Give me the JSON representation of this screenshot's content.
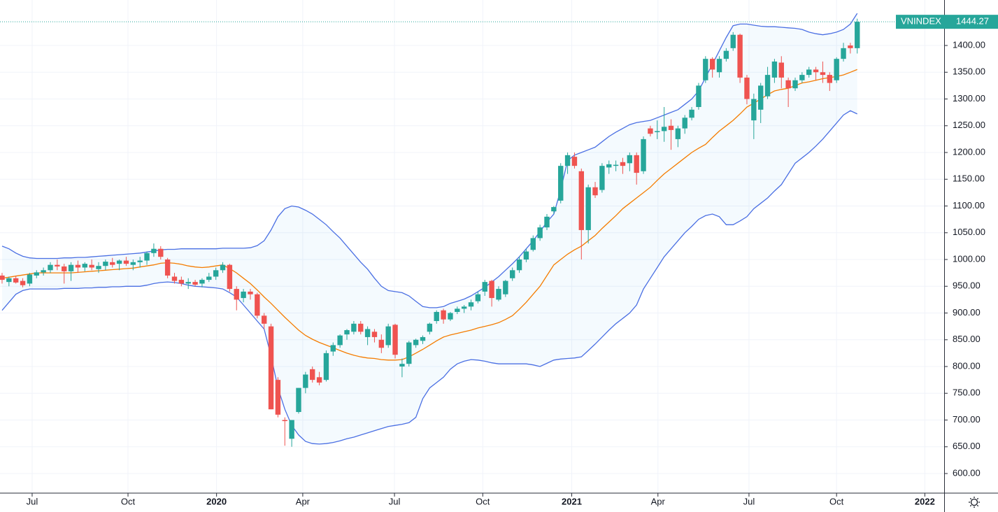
{
  "chart_data": {
    "type": "candlestick",
    "name": "VNINDEX",
    "up_color": "#26a69a",
    "down_color": "#ef5350",
    "grid": true,
    "open": [
      970,
      958,
      965,
      960,
      955,
      970,
      976,
      980,
      990,
      987,
      978,
      990,
      985,
      990,
      982,
      988,
      995,
      992,
      998,
      990,
      995,
      998,
      1012,
      1020,
      1000,
      968,
      962,
      955,
      958,
      955,
      962,
      968,
      980,
      990,
      945,
      928,
      940,
      935,
      895,
      875,
      775,
      700,
      665,
      715,
      760,
      795,
      780,
      775,
      828,
      840,
      860,
      865,
      880,
      855,
      865,
      850,
      840,
      878,
      800,
      805,
      840,
      848,
      865,
      885,
      905,
      888,
      902,
      908,
      912,
      922,
      940,
      960,
      925,
      935,
      965,
      980,
      1000,
      1018,
      1040,
      1060,
      1090,
      1110,
      1175,
      1192,
      1165,
      1055,
      1135,
      1130,
      1172,
      1175,
      1182,
      1180,
      1195,
      1165,
      1245,
      1238,
      1240,
      1250,
      1225,
      1245,
      1265,
      1285,
      1335,
      1375,
      1350,
      1375,
      1395,
      1420,
      1340,
      1260,
      1280,
      1305,
      1340,
      1368,
      1335,
      1320,
      1335,
      1345,
      1355,
      1350,
      1345,
      1335,
      1375,
      1400,
      1395
    ],
    "high": [
      975,
      968,
      970,
      965,
      975,
      980,
      985,
      995,
      1000,
      992,
      995,
      998,
      995,
      1000,
      995,
      1000,
      1003,
      1000,
      1005,
      1000,
      1005,
      1015,
      1030,
      1025,
      1003,
      975,
      968,
      965,
      962,
      965,
      975,
      985,
      995,
      992,
      950,
      945,
      945,
      938,
      900,
      880,
      780,
      705,
      700,
      760,
      790,
      800,
      790,
      830,
      845,
      860,
      870,
      885,
      885,
      875,
      870,
      860,
      880,
      880,
      815,
      848,
      852,
      858,
      882,
      905,
      908,
      902,
      912,
      915,
      925,
      940,
      962,
      962,
      950,
      962,
      985,
      1005,
      1020,
      1045,
      1065,
      1085,
      1100,
      1180,
      1200,
      1200,
      1170,
      1140,
      1145,
      1180,
      1185,
      1185,
      1190,
      1200,
      1200,
      1230,
      1250,
      1260,
      1285,
      1262,
      1250,
      1270,
      1285,
      1330,
      1380,
      1378,
      1380,
      1395,
      1425,
      1422,
      1345,
      1310,
      1330,
      1360,
      1375,
      1380,
      1340,
      1340,
      1350,
      1360,
      1360,
      1370,
      1350,
      1378,
      1405,
      1405,
      1450
    ],
    "low": [
      955,
      950,
      955,
      948,
      950,
      965,
      970,
      975,
      980,
      955,
      960,
      975,
      978,
      980,
      975,
      980,
      985,
      980,
      988,
      980,
      985,
      990,
      1005,
      1000,
      965,
      955,
      950,
      945,
      950,
      948,
      958,
      962,
      975,
      940,
      905,
      920,
      925,
      890,
      870,
      720,
      705,
      652,
      650,
      712,
      750,
      770,
      765,
      772,
      820,
      835,
      850,
      860,
      860,
      840,
      845,
      825,
      835,
      815,
      780,
      800,
      835,
      842,
      860,
      880,
      880,
      885,
      898,
      900,
      905,
      918,
      932,
      912,
      922,
      930,
      960,
      975,
      995,
      1015,
      1035,
      1055,
      1085,
      1105,
      1160,
      1170,
      1000,
      1030,
      1115,
      1125,
      1160,
      1165,
      1160,
      1165,
      1140,
      1160,
      1230,
      1225,
      1220,
      1205,
      1210,
      1235,
      1260,
      1280,
      1330,
      1340,
      1340,
      1370,
      1390,
      1330,
      1290,
      1225,
      1255,
      1300,
      1330,
      1320,
      1285,
      1315,
      1330,
      1340,
      1335,
      1330,
      1315,
      1330,
      1370,
      1385,
      1385
    ],
    "close": [
      962,
      965,
      957,
      952,
      972,
      976,
      980,
      990,
      987,
      978,
      990,
      985,
      992,
      985,
      988,
      996,
      990,
      998,
      992,
      995,
      998,
      1012,
      1020,
      1005,
      970,
      960,
      955,
      958,
      953,
      962,
      968,
      980,
      990,
      945,
      925,
      940,
      935,
      895,
      880,
      720,
      710,
      698,
      700,
      760,
      785,
      775,
      770,
      825,
      840,
      858,
      868,
      880,
      865,
      870,
      855,
      835,
      875,
      822,
      805,
      845,
      850,
      855,
      880,
      902,
      888,
      900,
      908,
      912,
      920,
      935,
      958,
      928,
      945,
      960,
      980,
      1000,
      1015,
      1040,
      1060,
      1080,
      1098,
      1175,
      1195,
      1175,
      1055,
      1135,
      1120,
      1175,
      1178,
      1177,
      1175,
      1195,
      1162,
      1225,
      1235,
      1240,
      1248,
      1242,
      1245,
      1265,
      1280,
      1325,
      1375,
      1355,
      1375,
      1390,
      1420,
      1340,
      1300,
      1300,
      1325,
      1345,
      1370,
      1340,
      1320,
      1335,
      1345,
      1355,
      1350,
      1345,
      1330,
      1375,
      1395,
      1395,
      1444.27
    ],
    "series": [
      {
        "color": "#4a6fe3",
        "values": [
          1025,
          1020,
          1012,
          1006,
          1003,
          1002,
          1002,
          1002,
          1002,
          1003,
          1003,
          1004,
          1004,
          1005,
          1006,
          1007,
          1008,
          1009,
          1010,
          1011,
          1012,
          1014,
          1016,
          1018,
          1019,
          1019,
          1020,
          1020,
          1020,
          1020,
          1020,
          1020,
          1021,
          1021,
          1021,
          1021,
          1022,
          1026,
          1035,
          1055,
          1080,
          1095,
          1100,
          1098,
          1092,
          1085,
          1075,
          1065,
          1052,
          1040,
          1025,
          1010,
          995,
          982,
          965,
          950,
          942,
          940,
          938,
          932,
          922,
          912,
          910,
          910,
          912,
          918,
          922,
          926,
          932,
          940,
          948,
          958,
          968,
          980,
          992,
          1005,
          1020,
          1035,
          1052,
          1070,
          1085,
          1130,
          1185,
          1195,
          1200,
          1205,
          1210,
          1220,
          1230,
          1238,
          1245,
          1252,
          1256,
          1258,
          1260,
          1265,
          1270,
          1275,
          1280,
          1290,
          1300,
          1315,
          1340,
          1365,
          1390,
          1415,
          1437,
          1440,
          1440,
          1438,
          1436,
          1435,
          1435,
          1434,
          1433,
          1432,
          1430,
          1425,
          1422,
          1420,
          1422,
          1425,
          1430,
          1440,
          1460
        ]
      },
      {
        "color": "#f57c00",
        "values": [
          965,
          967,
          969,
          971,
          973,
          975,
          975,
          975,
          975,
          975,
          975,
          976,
          977,
          978,
          979,
          980,
          981,
          982,
          983,
          984,
          986,
          988,
          990,
          993,
          994,
          993,
          991,
          988,
          986,
          985,
          986,
          988,
          990,
          983,
          975,
          965,
          955,
          943,
          930,
          918,
          905,
          892,
          880,
          868,
          858,
          851,
          845,
          840,
          835,
          830,
          825,
          821,
          818,
          816,
          815,
          813,
          812,
          812,
          813,
          818,
          825,
          832,
          840,
          848,
          855,
          859,
          862,
          865,
          868,
          872,
          875,
          878,
          882,
          888,
          895,
          907,
          920,
          935,
          950,
          970,
          990,
          1000,
          1010,
          1018,
          1025,
          1035,
          1045,
          1058,
          1070,
          1082,
          1095,
          1105,
          1115,
          1125,
          1135,
          1148,
          1160,
          1170,
          1180,
          1190,
          1200,
          1208,
          1215,
          1228,
          1240,
          1250,
          1260,
          1272,
          1285,
          1292,
          1300,
          1308,
          1315,
          1318,
          1320,
          1325,
          1330,
          1332,
          1335,
          1338,
          1340,
          1342,
          1345,
          1350,
          1355
        ]
      },
      {
        "color": "#4a6fe3",
        "values": [
          905,
          920,
          935,
          942,
          945,
          945,
          945,
          945,
          945,
          946,
          946,
          946,
          947,
          947,
          948,
          948,
          949,
          949,
          950,
          950,
          950,
          952,
          955,
          957,
          958,
          957,
          955,
          952,
          950,
          949,
          948,
          947,
          945,
          938,
          930,
          915,
          900,
          885,
          870,
          820,
          760,
          720,
          690,
          672,
          660,
          656,
          655,
          656,
          658,
          661,
          665,
          668,
          672,
          676,
          680,
          684,
          688,
          690,
          692,
          695,
          705,
          740,
          760,
          770,
          780,
          795,
          805,
          810,
          813,
          812,
          810,
          807,
          805,
          805,
          805,
          805,
          805,
          803,
          800,
          806,
          812,
          814,
          815,
          816,
          818,
          830,
          842,
          855,
          868,
          880,
          890,
          900,
          915,
          945,
          965,
          985,
          1005,
          1020,
          1035,
          1050,
          1062,
          1075,
          1082,
          1085,
          1080,
          1065,
          1065,
          1072,
          1080,
          1095,
          1105,
          1115,
          1128,
          1140,
          1160,
          1180,
          1190,
          1200,
          1212,
          1225,
          1240,
          1255,
          1270,
          1278,
          1272
        ]
      }
    ],
    "band_fill": "#2196f3",
    "ylim": [
      563.4,
      1485
    ],
    "yticks": [
      {
        "value": 600,
        "label": "600.00"
      },
      {
        "value": 650,
        "label": "650.00"
      },
      {
        "value": 700,
        "label": "700.00"
      },
      {
        "value": 750,
        "label": "750.00"
      },
      {
        "value": 800,
        "label": "800.00"
      },
      {
        "value": 850,
        "label": "850.00"
      },
      {
        "value": 900,
        "label": "900.00"
      },
      {
        "value": 950,
        "label": "950.00"
      },
      {
        "value": 1000,
        "label": "1000.00"
      },
      {
        "value": 1050,
        "label": "1050.00"
      },
      {
        "value": 1100,
        "label": "1100.00"
      },
      {
        "value": 1150,
        "label": "1150.00"
      },
      {
        "value": 1200,
        "label": "1200.00"
      },
      {
        "value": 1250,
        "label": "1250.00"
      },
      {
        "value": 1300,
        "label": "1300.00"
      },
      {
        "value": 1350,
        "label": "1350.00"
      },
      {
        "value": 1400,
        "label": "1400.00"
      }
    ],
    "xlim": [
      -0.3,
      136.6
    ],
    "xticks": [
      {
        "value": 4.36,
        "label": "Jul"
      },
      {
        "value": 18.26,
        "label": "Oct"
      },
      {
        "value": 31.1,
        "label": "2020"
      },
      {
        "value": 43.6,
        "label": "Apr"
      },
      {
        "value": 56.9,
        "label": "Jul"
      },
      {
        "value": 69.7,
        "label": "Oct"
      },
      {
        "value": 82.6,
        "label": "2021"
      },
      {
        "value": 95.1,
        "label": "Apr"
      },
      {
        "value": 108.3,
        "label": "Jul"
      },
      {
        "value": 121.0,
        "label": "Oct"
      },
      {
        "value": 133.8,
        "label": "2022"
      }
    ]
  }
}
